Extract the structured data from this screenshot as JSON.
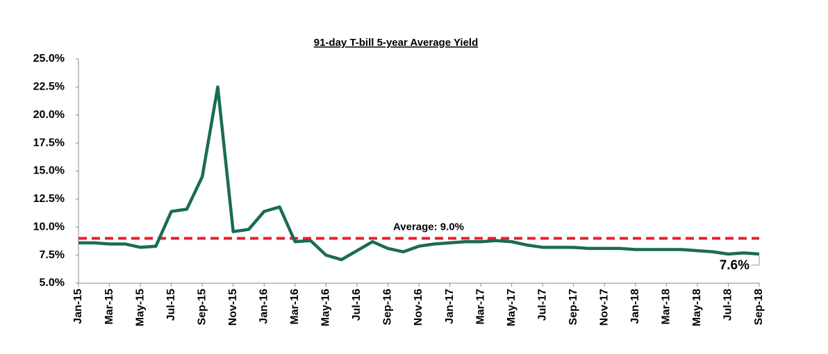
{
  "chart_data": {
    "type": "line",
    "title": "91-day T-bill 5-year Average Yield",
    "categories": [
      "Jan-15",
      null,
      "Mar-15",
      null,
      "May-15",
      null,
      "Jul-15",
      null,
      "Sep-15",
      null,
      "Nov-15",
      null,
      "Jan-16",
      null,
      "Mar-16",
      null,
      "May-16",
      null,
      "Jul-16",
      null,
      "Sep-16",
      null,
      "Nov-16",
      null,
      "Jan-17",
      null,
      "Mar-17",
      null,
      "May-17",
      null,
      "Jul-17",
      null,
      "Sep-17",
      null,
      "Nov-17",
      null,
      "Jan-18",
      null,
      "Mar-18",
      null,
      "May-18",
      null,
      "Jul-18",
      null,
      "Sep-18"
    ],
    "series": [
      {
        "name": "91-day T-bill",
        "color": "#1a6b55",
        "values": [
          8.6,
          8.6,
          8.5,
          8.5,
          8.2,
          8.3,
          11.4,
          11.6,
          14.5,
          22.5,
          9.6,
          9.8,
          11.4,
          11.8,
          8.7,
          8.8,
          7.5,
          7.1,
          7.9,
          8.7,
          8.1,
          7.8,
          8.3,
          8.5,
          8.6,
          8.7,
          8.7,
          8.8,
          8.7,
          8.4,
          8.2,
          8.2,
          8.2,
          8.1,
          8.1,
          8.1,
          8.0,
          8.0,
          8.0,
          8.0,
          7.9,
          7.8,
          7.6,
          7.7,
          7.6
        ],
        "value_labels": [
          null,
          null,
          null,
          null,
          null,
          null,
          null,
          null,
          null,
          null,
          null,
          null,
          null,
          null,
          null,
          null,
          null,
          null,
          null,
          null,
          null,
          null,
          null,
          null,
          null,
          null,
          null,
          null,
          null,
          null,
          null,
          null,
          null,
          null,
          null,
          null,
          null,
          null,
          null,
          null,
          null,
          null,
          null,
          null,
          "7.6%"
        ]
      }
    ],
    "average": {
      "label": "Average: 9.0%",
      "value": 9.0,
      "color": "#e8202a"
    },
    "ylim": [
      5,
      25
    ],
    "yticks": [
      {
        "value": 5,
        "label": "5.0%"
      },
      {
        "value": 7.5,
        "label": "7.5%"
      },
      {
        "value": 10,
        "label": "10.0%"
      },
      {
        "value": 12.5,
        "label": "12.5%"
      },
      {
        "value": 15,
        "label": "15.0%"
      },
      {
        "value": 17.5,
        "label": "17.5%"
      },
      {
        "value": 20,
        "label": "20.0%"
      },
      {
        "value": 22.5,
        "label": "22.5%"
      },
      {
        "value": 25,
        "label": "25.0%"
      }
    ],
    "grid": false
  }
}
